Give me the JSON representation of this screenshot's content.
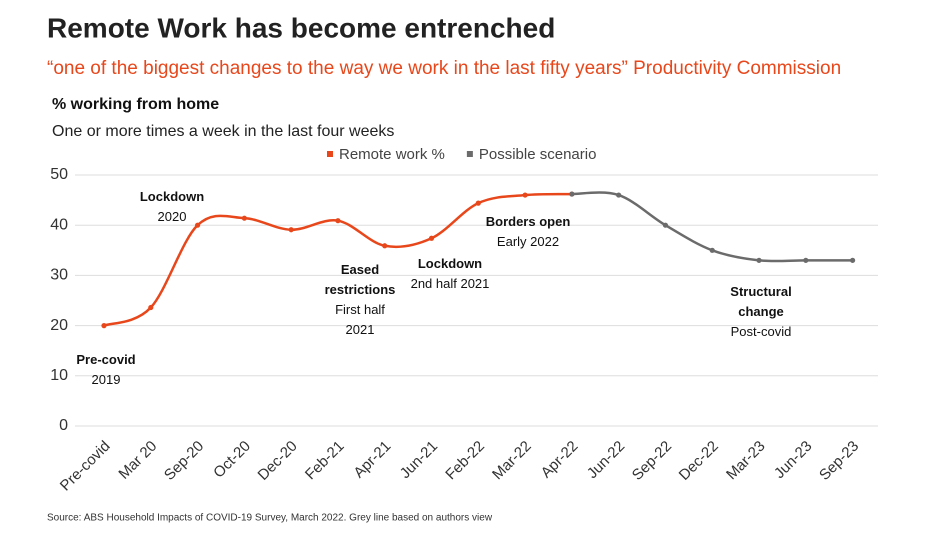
{
  "chart_data": {
    "type": "line",
    "title": "Remote Work has become entrenched",
    "subtitle": "“one of the biggest changes to the way we work in the last fifty years” Productivity Commission",
    "y_label": "% working from home",
    "y_sublabel": "One or more times a week in the last four weeks",
    "source": "Source: ABS Household Impacts of COVID-19 Survey, March 2022. Grey line based on authors view",
    "categories": [
      "Pre-covid",
      "Mar 20",
      "Sep-20",
      "Oct-20",
      "Dec-20",
      "Feb-21",
      "Apr-21",
      "Jun-21",
      "Feb-22",
      "Mar-22",
      "Apr-22",
      "Jun-22",
      "Sep-22",
      "Dec-22",
      "Mar-23",
      "Jun-23",
      "Sep-23"
    ],
    "series": [
      {
        "name": "Remote work %",
        "color": "#e8471b",
        "values": [
          20,
          23.6,
          40,
          41.4,
          39.1,
          40.9,
          35.9,
          37.4,
          44.4,
          46,
          46.2,
          null,
          null,
          null,
          null,
          null,
          null
        ]
      },
      {
        "name": "Possible scenario",
        "color": "#6b6b6b",
        "values": [
          null,
          null,
          null,
          null,
          null,
          null,
          null,
          null,
          null,
          null,
          46.2,
          46,
          40,
          35,
          33,
          33,
          33
        ]
      }
    ],
    "ylim": [
      0,
      50
    ],
    "yticks": [
      0,
      10,
      20,
      30,
      40,
      50
    ],
    "grid": true,
    "legend": "top",
    "annotations": [
      {
        "title": "Pre-covid",
        "text": "2019"
      },
      {
        "title": "Lockdown",
        "text": "2020"
      },
      {
        "title": "Eased restrictions",
        "text": "First half 2021"
      },
      {
        "title": "Lockdown",
        "text": "2nd half 2021"
      },
      {
        "title": "Borders open",
        "text": "Early 2022"
      },
      {
        "title": "Structural change",
        "text": "Post-covid"
      }
    ]
  }
}
